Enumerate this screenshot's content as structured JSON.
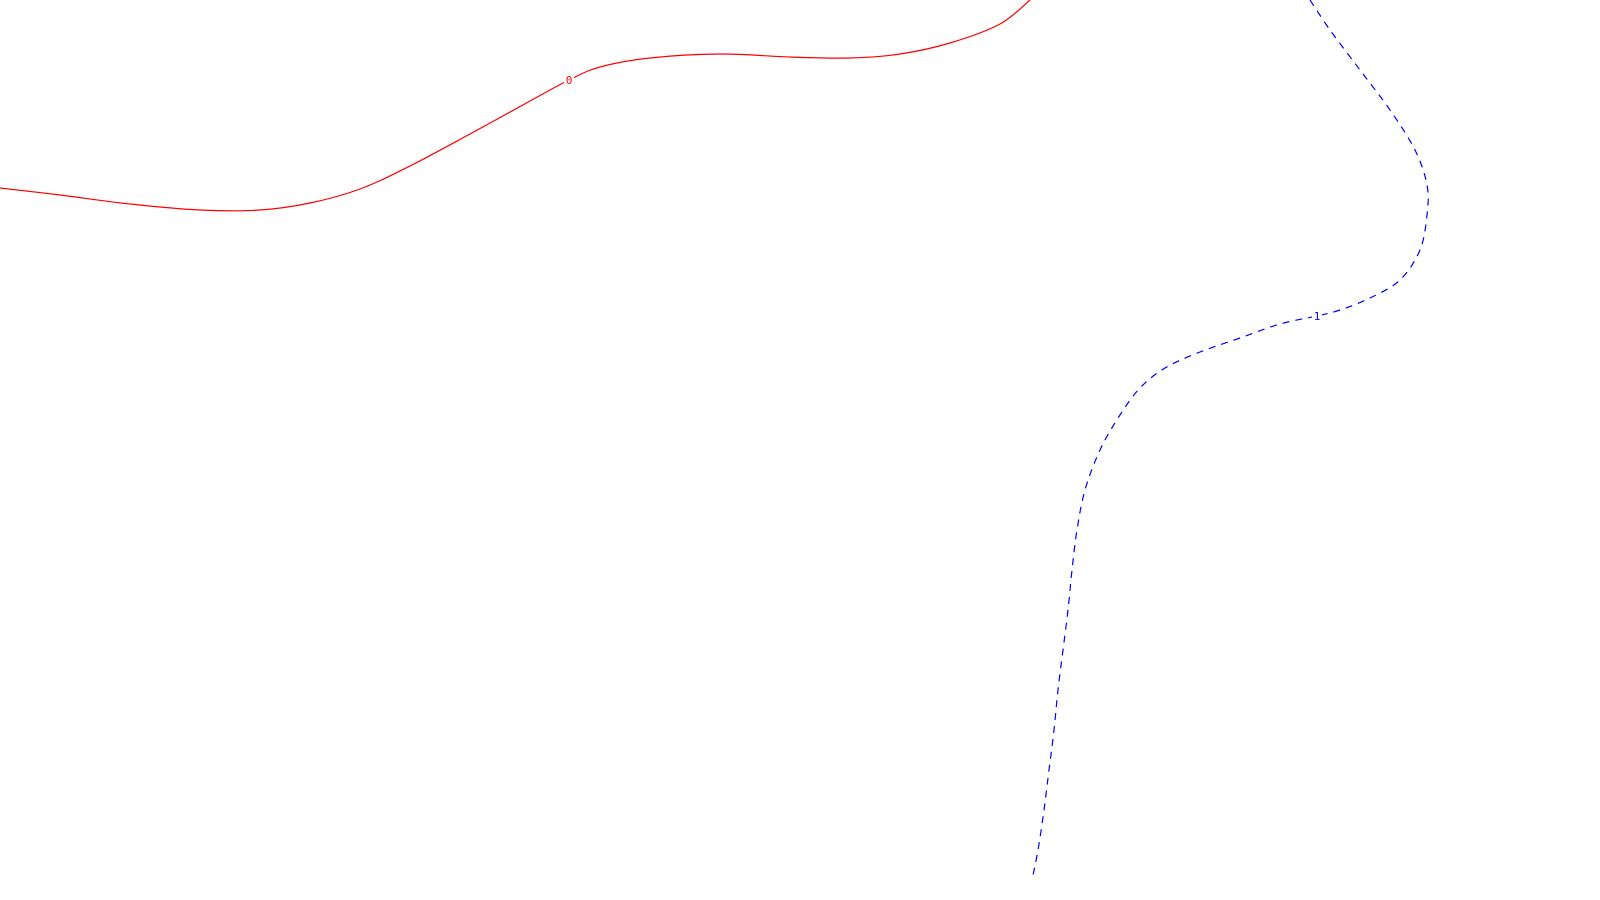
{
  "chart_data": {
    "type": "contour",
    "title": "",
    "xlabel": "",
    "ylabel": "",
    "grid": false,
    "legend": false,
    "series": [
      {
        "level": "0",
        "color": "#ff0000",
        "line_style": "solid",
        "points": [
          [
            0,
            188
          ],
          [
            60,
            195
          ],
          [
            130,
            204
          ],
          [
            200,
            210
          ],
          [
            260,
            210
          ],
          [
            310,
            203
          ],
          [
            360,
            189
          ],
          [
            410,
            166
          ],
          [
            470,
            134
          ],
          [
            530,
            101
          ],
          [
            569,
            80
          ],
          [
            600,
            67
          ],
          [
            650,
            58
          ],
          [
            720,
            54
          ],
          [
            790,
            57
          ],
          [
            850,
            58
          ],
          [
            900,
            54
          ],
          [
            950,
            43
          ],
          [
            1000,
            24
          ],
          [
            1030,
            0
          ]
        ]
      },
      {
        "level": "1",
        "color": "#0000ff",
        "line_style": "dashed",
        "points": [
          [
            1310,
            0
          ],
          [
            1330,
            30
          ],
          [
            1360,
            70
          ],
          [
            1390,
            110
          ],
          [
            1415,
            150
          ],
          [
            1427,
            185
          ],
          [
            1427,
            215
          ],
          [
            1420,
            250
          ],
          [
            1400,
            280
          ],
          [
            1370,
            298
          ],
          [
            1340,
            310
          ],
          [
            1317,
            316
          ],
          [
            1280,
            324
          ],
          [
            1240,
            338
          ],
          [
            1200,
            352
          ],
          [
            1165,
            368
          ],
          [
            1140,
            388
          ],
          [
            1120,
            415
          ],
          [
            1100,
            450
          ],
          [
            1085,
            490
          ],
          [
            1077,
            530
          ],
          [
            1072,
            570
          ],
          [
            1068,
            610
          ],
          [
            1063,
            650
          ],
          [
            1058,
            690
          ],
          [
            1054,
            730
          ],
          [
            1049,
            770
          ],
          [
            1044,
            810
          ],
          [
            1038,
            850
          ],
          [
            1032,
            880
          ]
        ]
      }
    ]
  }
}
